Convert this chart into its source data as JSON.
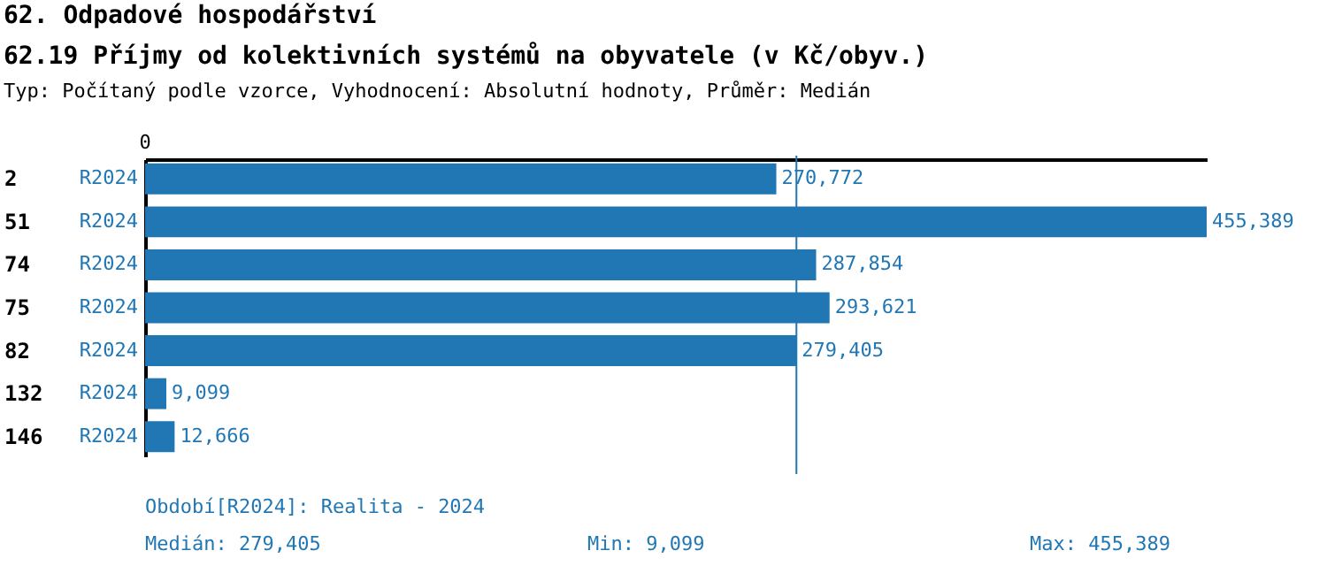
{
  "chart_data": {
    "type": "bar",
    "orientation": "horizontal",
    "title": "62. Odpadové hospodářství",
    "subtitle": "62.19 Příjmy od kolektivních systémů na obyvatele (v Kč/obyv.)",
    "categories": [
      "2",
      "51",
      "74",
      "75",
      "82",
      "132",
      "146"
    ],
    "series": [
      {
        "name": "R2024",
        "color": "#2077b4",
        "values": [
          270772,
          455389,
          287854,
          293621,
          279405,
          9099,
          12666
        ],
        "value_labels": [
          "270,772",
          "455,389",
          "287,854",
          "293,621",
          "279,405",
          "9,099",
          "12,666"
        ]
      }
    ],
    "ref_lines": [
      {
        "axis": "x",
        "value": 279405,
        "color": "#2077b4"
      }
    ],
    "annotations": [
      "0",
      "Typ: Počítaný podle vzorce, Vyhodnocení: Absolutní hodnoty, Průměr: Medián",
      "Období[R2024]: Realita - 2024",
      "Medián: 279,405",
      "Min: 9,099",
      "Max: 455,389"
    ]
  }
}
